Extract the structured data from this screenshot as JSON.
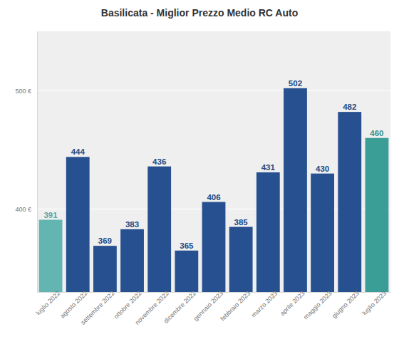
{
  "chart_data": {
    "type": "bar",
    "title": "Basilicata - Miglior Prezzo Medio RC Auto",
    "categories": [
      "luglio 2022",
      "agosto 2022",
      "settembre 2022",
      "ottobre 2022",
      "novembre 2022",
      "dicembre 2022",
      "gennaio 2023",
      "febbraio 2023",
      "marzo 2023",
      "aprile 2023",
      "maggio 2023",
      "giugno 2023",
      "luglio 2023"
    ],
    "values": [
      391,
      444,
      369,
      383,
      436,
      365,
      406,
      385,
      431,
      502,
      430,
      482,
      460
    ],
    "colors": [
      "#62b5b1",
      "#26508f",
      "#26508f",
      "#26508f",
      "#26508f",
      "#26508f",
      "#26508f",
      "#26508f",
      "#26508f",
      "#26508f",
      "#26508f",
      "#26508f",
      "#3a9e97"
    ],
    "ylim": [
      330,
      550
    ],
    "yticks": [
      {
        "value": 400,
        "label": "400 €"
      },
      {
        "value": 500,
        "label": "500 €"
      }
    ],
    "grid": true,
    "data_labels": true
  }
}
